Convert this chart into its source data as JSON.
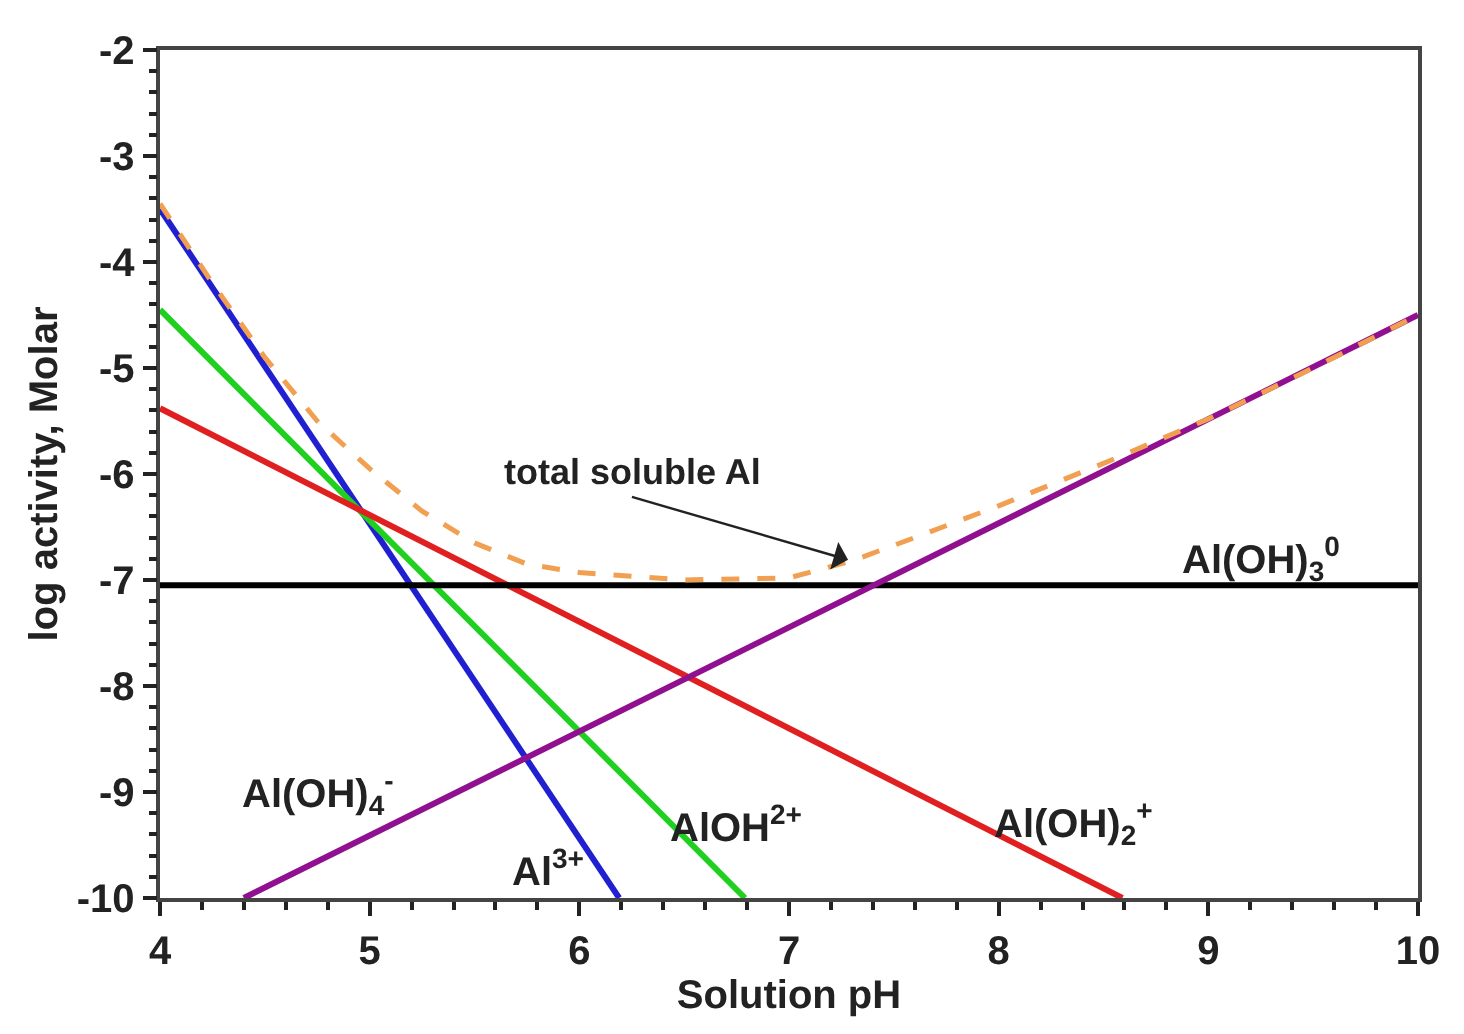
{
  "chart_data": {
    "type": "line",
    "xlabel": "Solution pH",
    "ylabel": "log activity, Molar",
    "xlim": [
      4,
      10
    ],
    "xticks": [
      4,
      5,
      6,
      7,
      8,
      9,
      10
    ],
    "ylim": [
      -10,
      -2
    ],
    "yticks": [
      -10,
      -9,
      -8,
      -7,
      -6,
      -5,
      -4,
      -3,
      -2
    ],
    "legend": false,
    "marker": "none",
    "series": [
      {
        "name": "Al$^{3+}$",
        "color": "#2020d0",
        "x": [
          4,
          6.19
        ],
        "values": [
          -3.5,
          -10
        ]
      },
      {
        "name": "AlOH$^{2+}$",
        "color": "#20d020",
        "x": [
          4,
          6.79
        ],
        "values": [
          -4.45,
          -10
        ]
      },
      {
        "name": "Al(OH)$_{2}$$^{+}$",
        "color": "#e02020",
        "x": [
          4,
          8.59
        ],
        "values": [
          -5.38,
          -10
        ]
      },
      {
        "name": "Al(OH)$_{3}$$^{0}$",
        "color": "#000000",
        "x": [
          4,
          10
        ],
        "values": [
          -7.05,
          -7.05
        ]
      },
      {
        "name": "Al(OH)$_{4}$$^{-}$",
        "color": "#901090",
        "x": [
          4.4,
          10
        ],
        "values": [
          -10,
          -4.5
        ]
      },
      {
        "color": "#f0a050",
        "line_style": "dashed",
        "x": [
          4,
          4.25,
          4.5,
          4.75,
          5,
          5.25,
          5.5,
          5.75,
          6,
          6.5,
          7,
          7.3,
          7.6,
          8,
          8.5,
          9,
          9.5,
          10
        ],
        "values": [
          -3.45,
          -4.2,
          -4.9,
          -5.5,
          -5.95,
          -6.35,
          -6.65,
          -6.85,
          -6.93,
          -7.0,
          -6.98,
          -6.82,
          -6.6,
          -6.3,
          -5.9,
          -5.48,
          -5.0,
          -4.5
        ]
      }
    ],
    "annotations": [
      {
        "text": "total soluble Al",
        "x": 7.3,
        "y": -6.82
      }
    ]
  }
}
